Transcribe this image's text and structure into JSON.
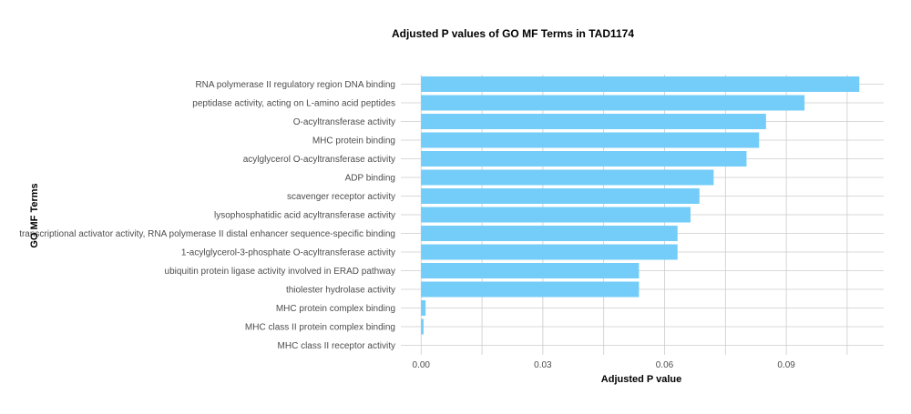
{
  "chart_data": {
    "type": "bar",
    "orientation": "horizontal",
    "title": "Adjusted P values of GO MF Terms in TAD1174",
    "xlabel": "Adjusted P value",
    "ylabel": "GO MF Terms",
    "categories": [
      "RNA polymerase II regulatory region DNA binding",
      "peptidase activity, acting on L-amino acid peptides",
      "O-acyltransferase activity",
      "MHC protein binding",
      "acylglycerol O-acyltransferase activity",
      "ADP binding",
      "scavenger receptor activity",
      "lysophosphatidic acid acyltransferase activity",
      "transcriptional activator activity, RNA polymerase II distal enhancer sequence-specific binding",
      "1-acylglycerol-3-phosphate O-acyltransferase activity",
      "ubiquitin protein ligase activity involved in ERAD pathway",
      "thiolester hydrolase activity",
      "MHC protein complex binding",
      "MHC class II protein complex binding",
      "MHC class II receptor activity"
    ],
    "values": [
      0.108,
      0.0945,
      0.085,
      0.0833,
      0.0802,
      0.0721,
      0.0686,
      0.0664,
      0.0632,
      0.0632,
      0.0537,
      0.0537,
      0.0011,
      0.0006,
      0.0
    ],
    "xlim": [
      -0.005,
      0.114
    ],
    "xticks": [
      0.0,
      0.03,
      0.06,
      0.09
    ],
    "xtick_labels": [
      "0.00",
      "0.03",
      "0.06",
      "0.09"
    ],
    "bar_color": "#74cdf8",
    "grid": true,
    "legend": "none"
  }
}
